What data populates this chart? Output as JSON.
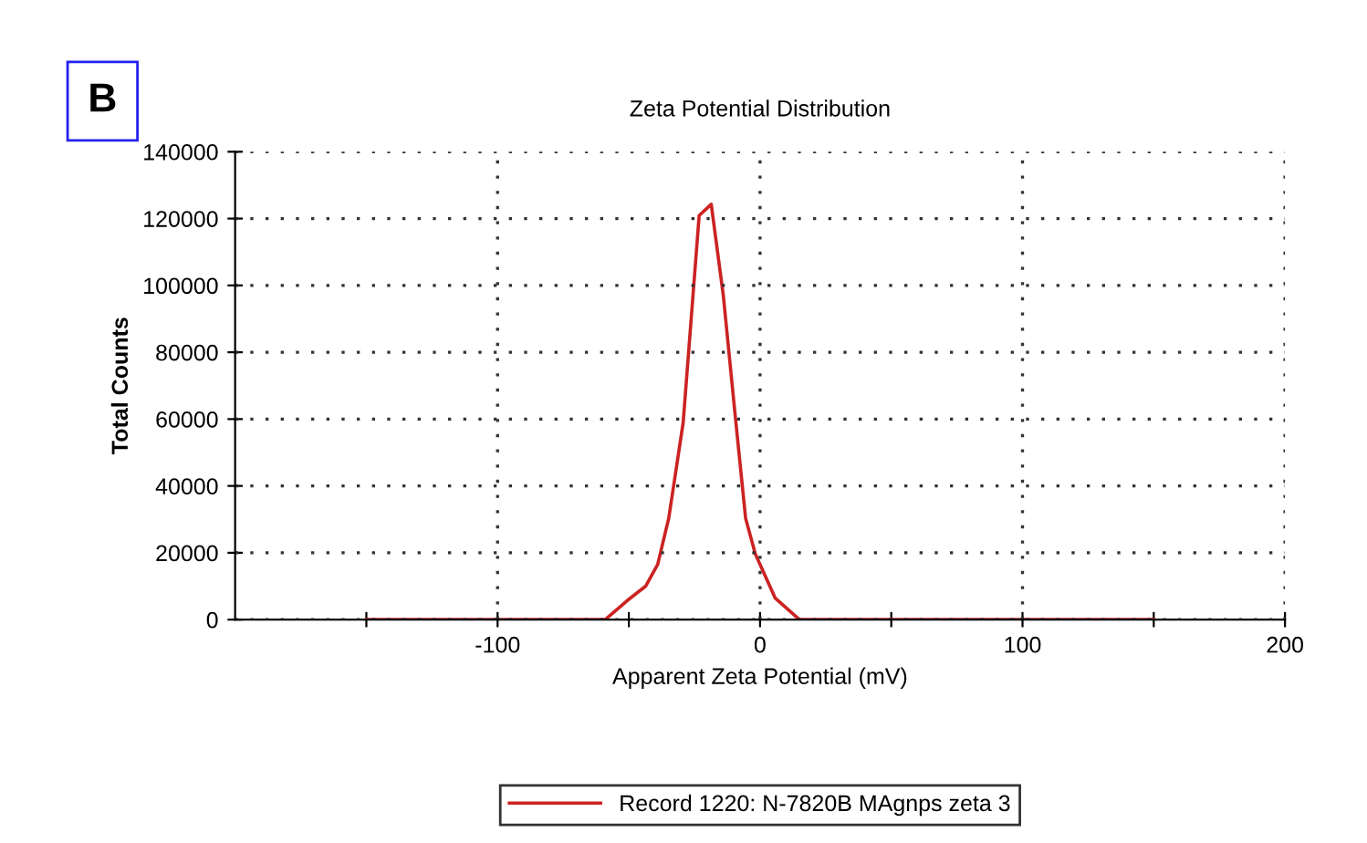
{
  "chart_data": {
    "type": "line",
    "title": "Zeta Potential Distribution",
    "xlabel": "Apparent Zeta Potential (mV)",
    "ylabel": "Total Counts",
    "annotations": [
      "B"
    ],
    "series": [
      {
        "name": "Record 1220: N-7820B MAgnps zeta 3",
        "color": "#cc2222",
        "x": [
          -150,
          -59,
          -50.6,
          -43.6,
          -39,
          -34.8,
          -29.3,
          -23.2,
          -18.6,
          -14,
          -9.5,
          -5.5,
          -1.8,
          5.8,
          15,
          150
        ],
        "values": [
          0,
          0,
          5700,
          10000,
          16500,
          30300,
          58900,
          120900,
          124300,
          97000,
          61300,
          30300,
          19600,
          6400,
          0,
          0
        ]
      }
    ],
    "xlim": [
      -200,
      200
    ],
    "xticks": [
      {
        "value": -150,
        "label": null
      },
      -100,
      {
        "value": -50,
        "label": null
      },
      0,
      {
        "value": 50,
        "label": null
      },
      100,
      {
        "value": 150,
        "label": null
      },
      200
    ],
    "ylim": [
      0,
      140000
    ],
    "yticks": [
      0,
      20000,
      40000,
      60000,
      80000,
      100000,
      120000,
      140000
    ],
    "grid": true,
    "legend": "bottom",
    "marker": "none",
    "line_style": "solid"
  }
}
